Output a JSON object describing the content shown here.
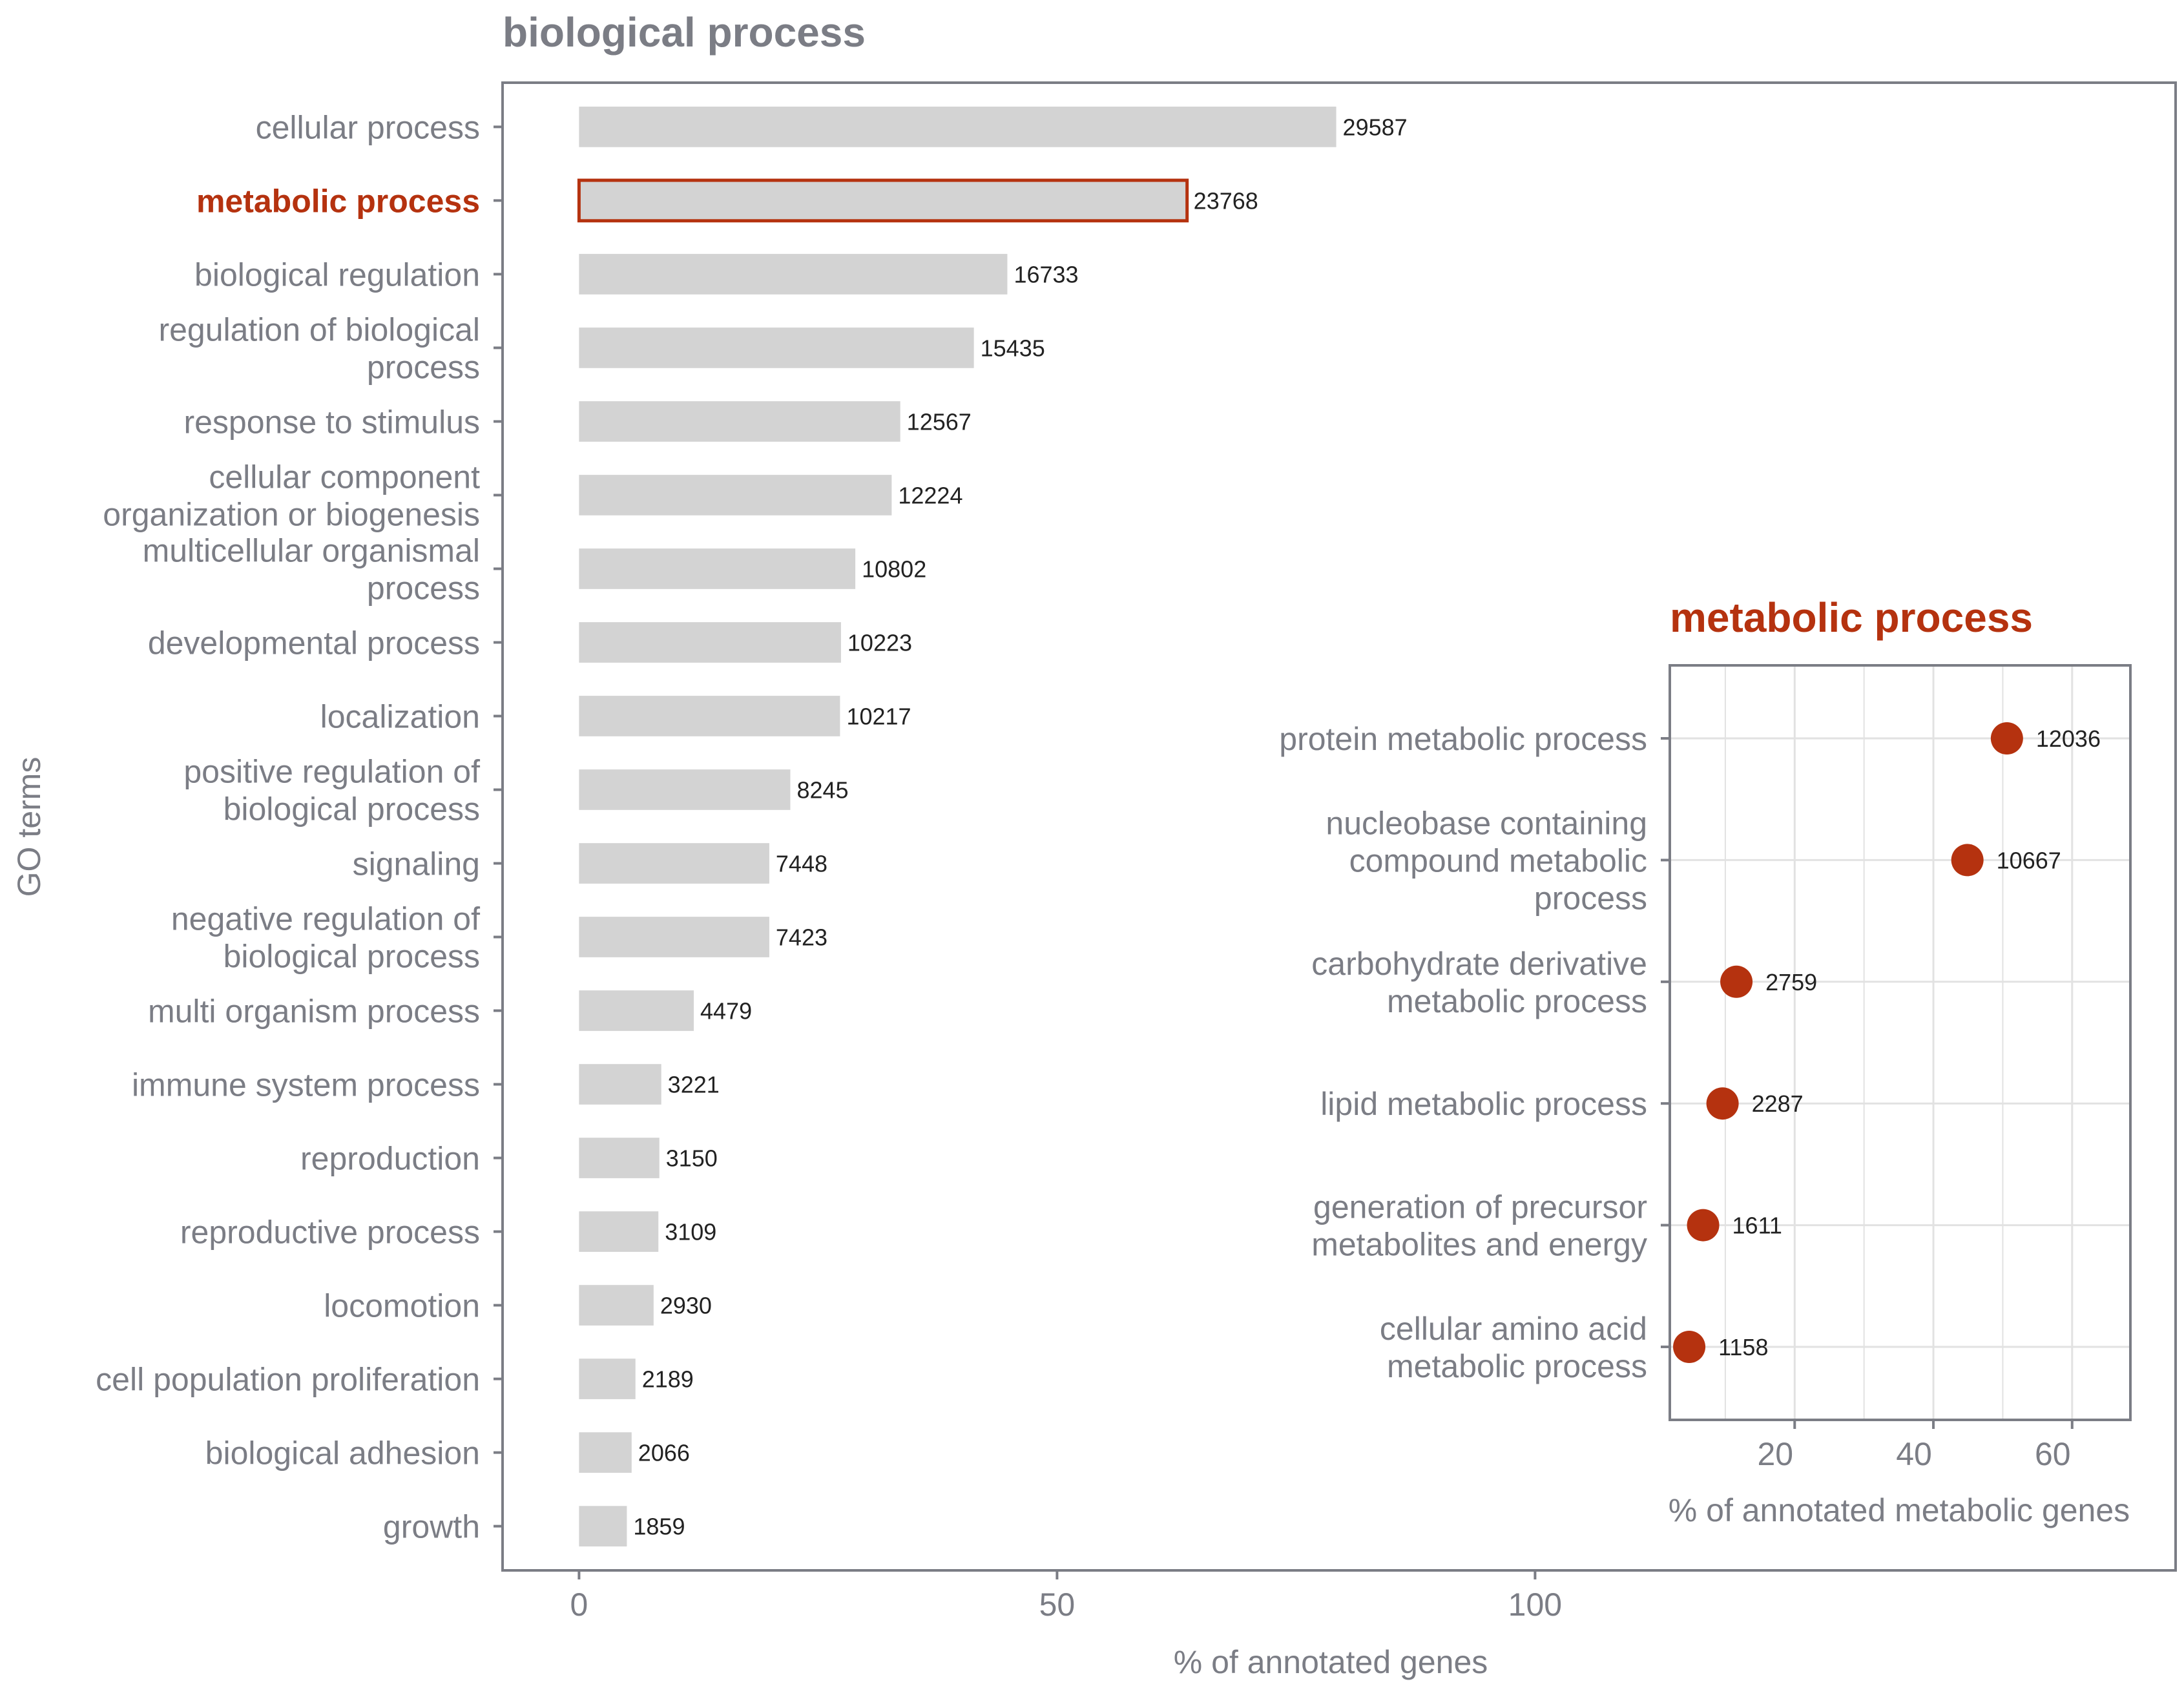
{
  "colors": {
    "text": "#7b7d85",
    "axis": "#7b7d85",
    "bar": "#d3d3d3",
    "highlight": "#b5320f",
    "grid": "#e2e2e2",
    "label_dark": "#222222"
  },
  "chart_data": [
    {
      "type": "bar",
      "orientation": "horizontal",
      "title": "biological process",
      "xlabel": "% of annotated genes",
      "ylabel": "GO terms",
      "xlim": [
        -8,
        167
      ],
      "xticks": [
        0,
        50,
        100
      ],
      "grid": false,
      "highlight_index": 1,
      "categories": [
        [
          "cellular process"
        ],
        [
          "metabolic process"
        ],
        [
          "biological regulation"
        ],
        [
          "regulation of biological",
          "process"
        ],
        [
          "response to stimulus"
        ],
        [
          "cellular component",
          "organization or biogenesis"
        ],
        [
          "multicellular organismal",
          "process"
        ],
        [
          "developmental process"
        ],
        [
          "localization"
        ],
        [
          "positive regulation of",
          "biological process"
        ],
        [
          "signaling"
        ],
        [
          "negative regulation of",
          "biological process"
        ],
        [
          "multi  organism process"
        ],
        [
          "immune system process"
        ],
        [
          "reproduction"
        ],
        [
          "reproductive process"
        ],
        [
          "locomotion"
        ],
        [
          "cell population proliferation"
        ],
        [
          "biological adhesion"
        ],
        [
          "growth"
        ]
      ],
      "values": [
        79.2,
        63.6,
        44.8,
        41.3,
        33.6,
        32.7,
        28.9,
        27.4,
        27.3,
        22.1,
        19.9,
        19.9,
        12.0,
        8.6,
        8.4,
        8.3,
        7.8,
        5.9,
        5.5,
        5.0
      ],
      "counts": [
        "29587",
        "23768",
        "16733",
        "15435",
        "12567",
        "12224",
        "10802",
        "10223",
        "10217",
        "8245",
        "7448",
        "7423",
        "4479",
        "3221",
        "3150",
        "3109",
        "2930",
        "2189",
        "2066",
        "1859"
      ]
    },
    {
      "type": "scatter",
      "title": "metabolic process",
      "xlabel": "% of annotated metabolic genes",
      "xlim": [
        2,
        68.4
      ],
      "xticks": [
        20,
        40,
        60
      ],
      "grid": true,
      "categories": [
        [
          "protein metabolic process"
        ],
        [
          "nucleobase  containing",
          "compound metabolic",
          "process"
        ],
        [
          "carbohydrate derivative",
          "metabolic process"
        ],
        [
          "lipid metabolic process"
        ],
        [
          "generation of precursor",
          "metabolites and energy"
        ],
        [
          "cellular amino acid",
          "metabolic process"
        ]
      ],
      "values": [
        50.6,
        44.9,
        11.6,
        9.6,
        6.8,
        4.8
      ],
      "counts": [
        "12036",
        "10667",
        "2759",
        "2287",
        "1611",
        "1158"
      ]
    }
  ]
}
